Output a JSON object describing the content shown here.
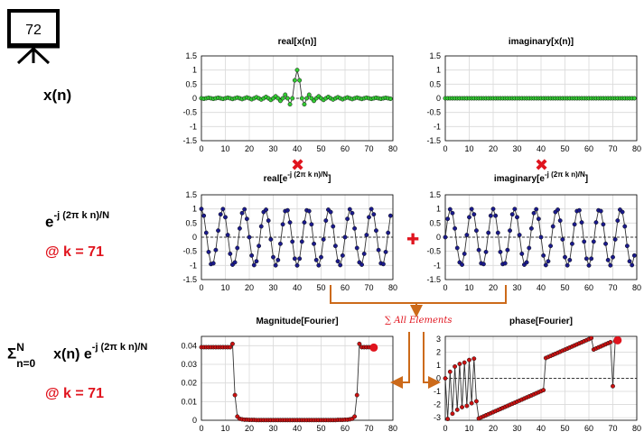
{
  "badge": {
    "number": "72"
  },
  "left": {
    "xn": "x(n)",
    "kernel_base": "e",
    "kernel_exp": "-j (2π k n)/N",
    "at_k_1": "@ k = 71",
    "sum_sigma": "Σ",
    "sum_upper": "N",
    "sum_lower": "n=0",
    "sum_body": " x(n) e",
    "sum_exp": "-j (2π k n)/N",
    "at_k_2": "@ k = 71"
  },
  "ops": {
    "multiply_symbol": "✖",
    "plus_symbol": "✚",
    "sum_label": "∑ All Elements"
  },
  "colors": {
    "green": "#33cc33",
    "blue": "#1a1a8c",
    "red": "#cc1111",
    "line": "#555555",
    "orange": "#cc6a1a",
    "marker_red": "#e0141e",
    "grid": "#d9d9d9"
  },
  "chart_data": [
    {
      "id": "real_x",
      "type": "line",
      "title": "real[x(n)]",
      "title_main": "real[x(n)]",
      "title_sup": "",
      "title_tail": "",
      "xlim": [
        0,
        80
      ],
      "ylim": [
        -1.5,
        1.5
      ],
      "xticks": [
        0,
        10,
        20,
        30,
        40,
        50,
        60,
        70,
        80
      ],
      "yticks": [
        -1.5,
        -1,
        -0.5,
        0,
        0.5,
        1,
        1.5
      ],
      "series": [
        {
          "kind": "sinc",
          "x_range": [
            0,
            79
          ],
          "center": 40,
          "width": 2,
          "color": "green"
        }
      ]
    },
    {
      "id": "imag_x",
      "type": "line",
      "title": "imaginary[x(n)]",
      "title_main": "imaginary[x(n)]",
      "title_sup": "",
      "title_tail": "",
      "xlim": [
        0,
        80
      ],
      "ylim": [
        -1.5,
        1.5
      ],
      "xticks": [
        0,
        10,
        20,
        30,
        40,
        50,
        60,
        70,
        80
      ],
      "yticks": [
        -1.5,
        -1,
        -0.5,
        0,
        0.5,
        1,
        1.5
      ],
      "series": [
        {
          "kind": "constant",
          "x_range": [
            0,
            79
          ],
          "value": 0,
          "color": "green"
        }
      ]
    },
    {
      "id": "real_e",
      "type": "line",
      "title": "real[e-j (2π k n)/N]",
      "title_main": "real[e",
      "title_sup": "-j (2π k n)/N",
      "title_tail": "]",
      "xlim": [
        0,
        80
      ],
      "ylim": [
        -1.5,
        1.5
      ],
      "xticks": [
        0,
        10,
        20,
        30,
        40,
        50,
        60,
        70,
        80
      ],
      "yticks": [
        -1.5,
        -1,
        -0.5,
        0,
        0.5,
        1,
        1.5
      ],
      "series": [
        {
          "kind": "cos",
          "x_range": [
            0,
            79
          ],
          "k": 71,
          "N": 80,
          "color": "blue"
        }
      ]
    },
    {
      "id": "imag_e",
      "type": "line",
      "title": "imaginary[e-j (2π k n)/N]",
      "title_main": "imaginary[e",
      "title_sup": "-j (2π k n)/N",
      "title_tail": "]",
      "xlim": [
        0,
        80
      ],
      "ylim": [
        -1.5,
        1.5
      ],
      "xticks": [
        0,
        10,
        20,
        30,
        40,
        50,
        60,
        70,
        80
      ],
      "yticks": [
        -1.5,
        -1,
        -0.5,
        0,
        0.5,
        1,
        1.5
      ],
      "series": [
        {
          "kind": "negsin",
          "x_range": [
            0,
            79
          ],
          "k": 71,
          "N": 80,
          "color": "blue"
        }
      ]
    },
    {
      "id": "mag",
      "type": "line",
      "title": "Magnitude[Fourier]",
      "title_main": "Magnitude[Fourier]",
      "title_sup": "",
      "title_tail": "",
      "xlim": [
        0,
        80
      ],
      "ylim": [
        0,
        0.045
      ],
      "xticks": [
        0,
        10,
        20,
        30,
        40,
        50,
        60,
        70,
        80
      ],
      "yticks": [
        0,
        0.01,
        0.02,
        0.03,
        0.04
      ],
      "ytick_labels": [
        "0",
        "0.01",
        "0.02",
        "0.03",
        "0.04"
      ],
      "x": [
        0,
        1,
        2,
        3,
        4,
        5,
        6,
        7,
        8,
        9,
        10,
        11,
        12,
        13,
        14,
        15,
        16,
        17,
        18,
        19,
        20,
        21,
        22,
        23,
        24,
        25,
        26,
        27,
        28,
        29,
        30,
        31,
        32,
        33,
        34,
        35,
        36,
        37,
        38,
        39,
        40,
        41,
        42,
        43,
        44,
        45,
        46,
        47,
        48,
        49,
        50,
        51,
        52,
        53,
        54,
        55,
        56,
        57,
        58,
        59,
        60,
        61,
        62,
        63,
        64,
        65,
        66,
        67,
        68,
        69,
        70,
        71
      ],
      "values": [
        0.0392,
        0.0392,
        0.0392,
        0.0392,
        0.0392,
        0.0392,
        0.0392,
        0.0392,
        0.0392,
        0.0392,
        0.0392,
        0.0392,
        0.0392,
        0.041,
        0.0135,
        0.002,
        0.0008,
        0.0005,
        0.0003,
        0.0003,
        0.0002,
        0.0002,
        0.0002,
        0.0001,
        0.0001,
        0.0001,
        0.0001,
        0.0001,
        0.0001,
        0.0001,
        0.0001,
        0.0001,
        0.0001,
        0.0001,
        0.0001,
        0.0001,
        0.0001,
        0.0001,
        0.0001,
        0.0001,
        0.0001,
        0.0001,
        0.0001,
        0.0001,
        0.0001,
        0.0001,
        0.0001,
        0.0001,
        0.0001,
        0.0001,
        0.0001,
        0.0001,
        0.0001,
        0.0001,
        0.0001,
        0.0001,
        0.0001,
        0.0002,
        0.0002,
        0.0002,
        0.0003,
        0.0003,
        0.0005,
        0.0008,
        0.002,
        0.0135,
        0.041,
        0.0392,
        0.0392,
        0.0392,
        0.0392,
        0.0392
      ],
      "highlight": {
        "x": 72,
        "y": 0.039
      },
      "color": "red"
    },
    {
      "id": "phase",
      "type": "line",
      "title": "phase[Fourier]",
      "title_main": "phase[Fourier]",
      "title_sup": "",
      "title_tail": "",
      "xlim": [
        0,
        80
      ],
      "ylim": [
        -3.2,
        3.2
      ],
      "xticks": [
        0,
        10,
        20,
        30,
        40,
        50,
        60,
        70,
        80
      ],
      "yticks": [
        -3,
        -2,
        -1,
        0,
        1,
        2,
        3
      ],
      "x": [
        0,
        1,
        2,
        3,
        4,
        5,
        6,
        7,
        8,
        9,
        10,
        11,
        12,
        13,
        14,
        15,
        16,
        17,
        18,
        19,
        20,
        21,
        22,
        23,
        24,
        25,
        26,
        27,
        28,
        29,
        30,
        31,
        32,
        33,
        34,
        35,
        36,
        37,
        38,
        39,
        40,
        41,
        42,
        43,
        44,
        45,
        46,
        47,
        48,
        49,
        50,
        51,
        52,
        53,
        54,
        55,
        56,
        57,
        58,
        59,
        60,
        61,
        62,
        63,
        64,
        65,
        66,
        67,
        68,
        69,
        70,
        71,
        72
      ],
      "values": [
        0.0,
        -3.1,
        0.5,
        -2.7,
        0.9,
        -2.4,
        1.1,
        -2.2,
        1.2,
        -2.1,
        1.4,
        -1.9,
        1.5,
        -1.75,
        -3.06,
        -2.98,
        -2.9,
        -2.82,
        -2.74,
        -2.66,
        -2.58,
        -2.5,
        -2.42,
        -2.34,
        -2.26,
        -2.18,
        -2.1,
        -2.02,
        -1.94,
        -1.86,
        -1.78,
        -1.7,
        -1.62,
        -1.54,
        -1.46,
        -1.38,
        -1.3,
        -1.22,
        -1.14,
        -1.06,
        -0.98,
        -0.9,
        1.55,
        1.63,
        1.71,
        1.79,
        1.87,
        1.95,
        2.03,
        2.11,
        2.19,
        2.27,
        2.35,
        2.43,
        2.51,
        2.59,
        2.67,
        2.75,
        2.83,
        2.91,
        2.99,
        3.07,
        2.2,
        2.28,
        2.36,
        2.44,
        2.52,
        2.6,
        2.68,
        2.76,
        -0.6,
        2.84,
        2.9
      ],
      "highlight": {
        "x": 72,
        "y": 2.9
      },
      "color": "red"
    }
  ]
}
